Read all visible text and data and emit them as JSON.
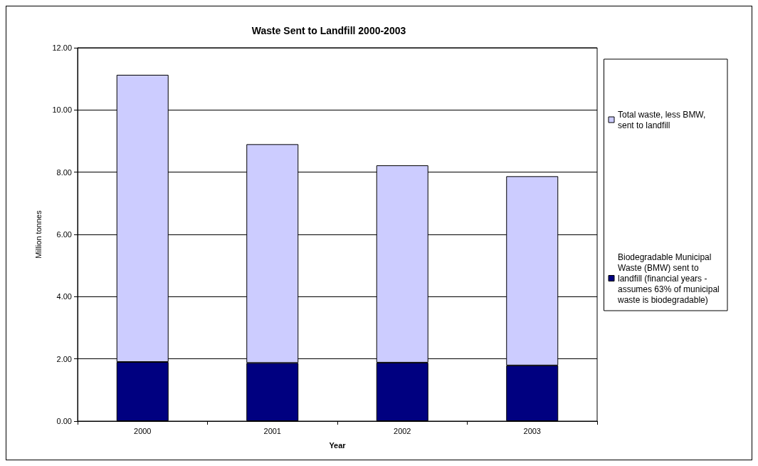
{
  "chart_data": {
    "type": "bar",
    "title": "Waste Sent to Landfill 2000-2003",
    "xlabel": "Year",
    "ylabel": "Million tonnes",
    "categories": [
      "2000",
      "2001",
      "2002",
      "2003"
    ],
    "stacked": true,
    "series": [
      {
        "name": "Biodegradable Municipal Waste (BMW) sent to landfill (financial years - assumes 63% of municipal waste is biodegradable)",
        "color": "#000080",
        "values": [
          1.9,
          1.87,
          1.88,
          1.79
        ]
      },
      {
        "name": "Total waste, less BMW, sent to landfill",
        "color": "#ccccff",
        "values": [
          9.23,
          7.03,
          6.34,
          6.08
        ]
      }
    ],
    "ylim": [
      0,
      12
    ],
    "yticks": [
      {
        "value": 0,
        "label": "0.00"
      },
      {
        "value": 2,
        "label": "2.00"
      },
      {
        "value": 4,
        "label": "4.00"
      },
      {
        "value": 6,
        "label": "6.00"
      },
      {
        "value": 8,
        "label": "8.00"
      },
      {
        "value": 10,
        "label": "10.00"
      },
      {
        "value": 12,
        "label": "12.00"
      }
    ],
    "grid": "y",
    "legend": "right"
  }
}
